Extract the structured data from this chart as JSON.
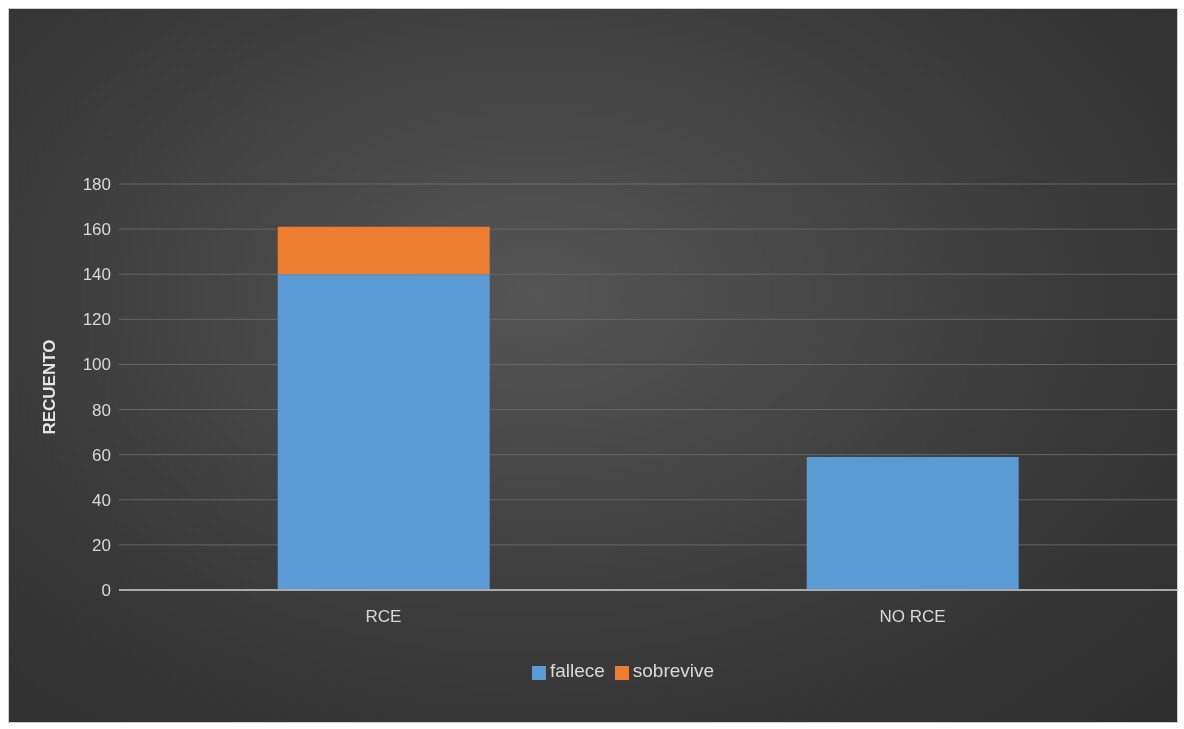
{
  "chart_data": {
    "type": "bar",
    "stacked": true,
    "ylabel": "RECUENTO",
    "categories": [
      "RCE",
      "NO RCE"
    ],
    "series": [
      {
        "name": "fallece",
        "color": "#5b9bd5",
        "values": [
          140,
          59
        ]
      },
      {
        "name": "sobrevive",
        "color": "#ed7d31",
        "values": [
          21,
          null
        ]
      }
    ],
    "ylim": [
      0,
      180
    ],
    "yticks": [
      0,
      20,
      40,
      60,
      80,
      100,
      120,
      140,
      160,
      180
    ],
    "grid": "y",
    "legend": "bottom"
  }
}
